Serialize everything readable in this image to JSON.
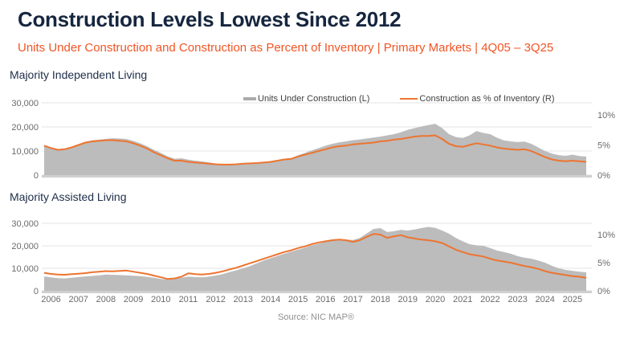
{
  "header": {
    "title": "Construction Levels Lowest Since 2012",
    "subtitle": "Units Under Construction and Construction as Percent of Inventory | Primary Markets | 4Q05 – 3Q25"
  },
  "source": {
    "label": "Source: NIC MAP®"
  },
  "legend": [
    {
      "label": "Units Under Construction (L)",
      "color": "#ABABAB",
      "marker": "area-swatch"
    },
    {
      "label": "Construction as % of Inventory (R)",
      "color": "#ED7430",
      "marker": "line-swatch"
    }
  ],
  "colors": {
    "title_navy": "#16263F",
    "accent_orange": "#F15524",
    "line_orange": "#ED7430",
    "area_gray": "#BCBCBC",
    "gridline": "#E3E3E3",
    "axis_bar": "#CFCFCF",
    "tick_text": "#6B6B6B"
  },
  "x_axis": {
    "labels": [
      "2006",
      "2007",
      "2008",
      "2009",
      "2010",
      "2011",
      "2012",
      "2013",
      "2014",
      "2015",
      "2016",
      "2017",
      "2018",
      "2019",
      "2020",
      "2021",
      "2022",
      "2023",
      "2024",
      "2025"
    ],
    "start": "4Q05",
    "end": "3Q25",
    "frequency": "quarterly"
  },
  "chart_data": [
    {
      "type": "area",
      "title": "Majority Independent Living",
      "x_start": "4Q05",
      "x_end": "3Q25",
      "left_axis": {
        "label": "Units Under Construction",
        "ticks": [
          "0",
          "10,000",
          "20,000",
          "30,000"
        ],
        "values": [
          0,
          10000,
          20000,
          30000
        ],
        "max": 30000
      },
      "right_axis": {
        "label": "Construction as % of Inventory",
        "ticks": [
          "0%",
          "5%",
          "10%"
        ],
        "values": [
          0,
          5,
          10
        ],
        "max": 12
      },
      "grid": true,
      "legend_position": "top-center",
      "series": [
        {
          "name": "Units Under Construction (L)",
          "axis": "left",
          "style": "area",
          "values": [
            12000,
            11200,
            10800,
            11000,
            11800,
            12800,
            13800,
            14400,
            14700,
            15000,
            15300,
            15200,
            15000,
            14200,
            13200,
            12000,
            10500,
            9200,
            7800,
            6800,
            7000,
            6400,
            6000,
            5700,
            5300,
            4800,
            4300,
            4200,
            4500,
            4700,
            4900,
            5100,
            5400,
            5800,
            6200,
            6800,
            7000,
            8200,
            9200,
            10300,
            11200,
            12200,
            13000,
            13600,
            14000,
            14500,
            14800,
            15200,
            15600,
            16000,
            16500,
            17000,
            17800,
            18800,
            19500,
            20200,
            20800,
            21300,
            19500,
            17000,
            15800,
            15400,
            16500,
            18300,
            17500,
            17000,
            15500,
            14400,
            14000,
            13700,
            13900,
            13000,
            11500,
            10000,
            8900,
            8300,
            8000,
            8500,
            7900,
            7700
          ]
        },
        {
          "name": "Construction as % of Inventory (R)",
          "axis": "right",
          "style": "line",
          "values": [
            4.9,
            4.5,
            4.2,
            4.3,
            4.6,
            5.0,
            5.4,
            5.6,
            5.7,
            5.8,
            5.8,
            5.7,
            5.6,
            5.3,
            4.9,
            4.4,
            3.8,
            3.3,
            2.8,
            2.4,
            2.4,
            2.2,
            2.1,
            2.0,
            1.9,
            1.8,
            1.75,
            1.75,
            1.8,
            1.9,
            1.95,
            2.0,
            2.1,
            2.2,
            2.4,
            2.6,
            2.7,
            3.1,
            3.4,
            3.7,
            4.0,
            4.3,
            4.6,
            4.8,
            4.9,
            5.1,
            5.2,
            5.3,
            5.4,
            5.6,
            5.7,
            5.9,
            6.0,
            6.2,
            6.4,
            6.5,
            6.5,
            6.6,
            6.0,
            5.2,
            4.8,
            4.7,
            5.0,
            5.3,
            5.1,
            4.9,
            4.6,
            4.4,
            4.3,
            4.2,
            4.3,
            4.0,
            3.5,
            3.0,
            2.6,
            2.4,
            2.3,
            2.4,
            2.3,
            2.2
          ]
        }
      ]
    },
    {
      "type": "area",
      "title": "Majority Assisted Living",
      "x_start": "4Q05",
      "x_end": "3Q25",
      "left_axis": {
        "label": "Units Under Construction",
        "ticks": [
          "0",
          "10,000",
          "20,000",
          "30,000"
        ],
        "values": [
          0,
          10000,
          20000,
          30000
        ],
        "max": 30000
      },
      "right_axis": {
        "label": "Construction as % of Inventory",
        "ticks": [
          "0%",
          "5%",
          "10%"
        ],
        "values": [
          0,
          5,
          10
        ],
        "max": 12
      },
      "grid": true,
      "series": [
        {
          "name": "Units Under Construction (L)",
          "axis": "left",
          "style": "area",
          "values": [
            6400,
            6000,
            5600,
            5500,
            5800,
            6100,
            6400,
            6600,
            6900,
            7200,
            7100,
            7000,
            6900,
            6700,
            6500,
            6200,
            5800,
            5300,
            5000,
            5200,
            5800,
            6300,
            6100,
            6000,
            6300,
            6800,
            7400,
            8300,
            9100,
            10000,
            11000,
            12200,
            13500,
            14500,
            15500,
            16500,
            17400,
            18300,
            19200,
            20200,
            21000,
            21800,
            22400,
            23000,
            22800,
            22600,
            23500,
            25500,
            27500,
            27900,
            26100,
            26500,
            27100,
            26800,
            27300,
            27900,
            28400,
            28000,
            26800,
            25400,
            23500,
            22000,
            20700,
            20200,
            20000,
            19000,
            17900,
            17200,
            16500,
            15400,
            14700,
            14300,
            13500,
            12500,
            11100,
            10000,
            9300,
            8900,
            8500,
            8200
          ]
        },
        {
          "name": "Construction as % of Inventory (R)",
          "axis": "right",
          "style": "line",
          "values": [
            3.2,
            3.0,
            2.9,
            2.85,
            2.95,
            3.05,
            3.15,
            3.3,
            3.4,
            3.5,
            3.45,
            3.55,
            3.6,
            3.4,
            3.2,
            3.0,
            2.7,
            2.4,
            2.1,
            2.2,
            2.5,
            3.1,
            2.95,
            2.9,
            3.0,
            3.2,
            3.45,
            3.8,
            4.1,
            4.5,
            4.9,
            5.3,
            5.7,
            6.1,
            6.5,
            6.9,
            7.2,
            7.6,
            7.9,
            8.3,
            8.6,
            8.8,
            9.0,
            9.1,
            9.0,
            8.7,
            9.0,
            9.6,
            10.1,
            10.0,
            9.4,
            9.7,
            9.9,
            9.5,
            9.3,
            9.1,
            9.0,
            8.8,
            8.5,
            7.9,
            7.3,
            6.9,
            6.5,
            6.3,
            6.1,
            5.7,
            5.4,
            5.2,
            5.0,
            4.7,
            4.4,
            4.2,
            3.9,
            3.5,
            3.2,
            3.0,
            2.8,
            2.6,
            2.5,
            2.3
          ]
        }
      ]
    }
  ]
}
